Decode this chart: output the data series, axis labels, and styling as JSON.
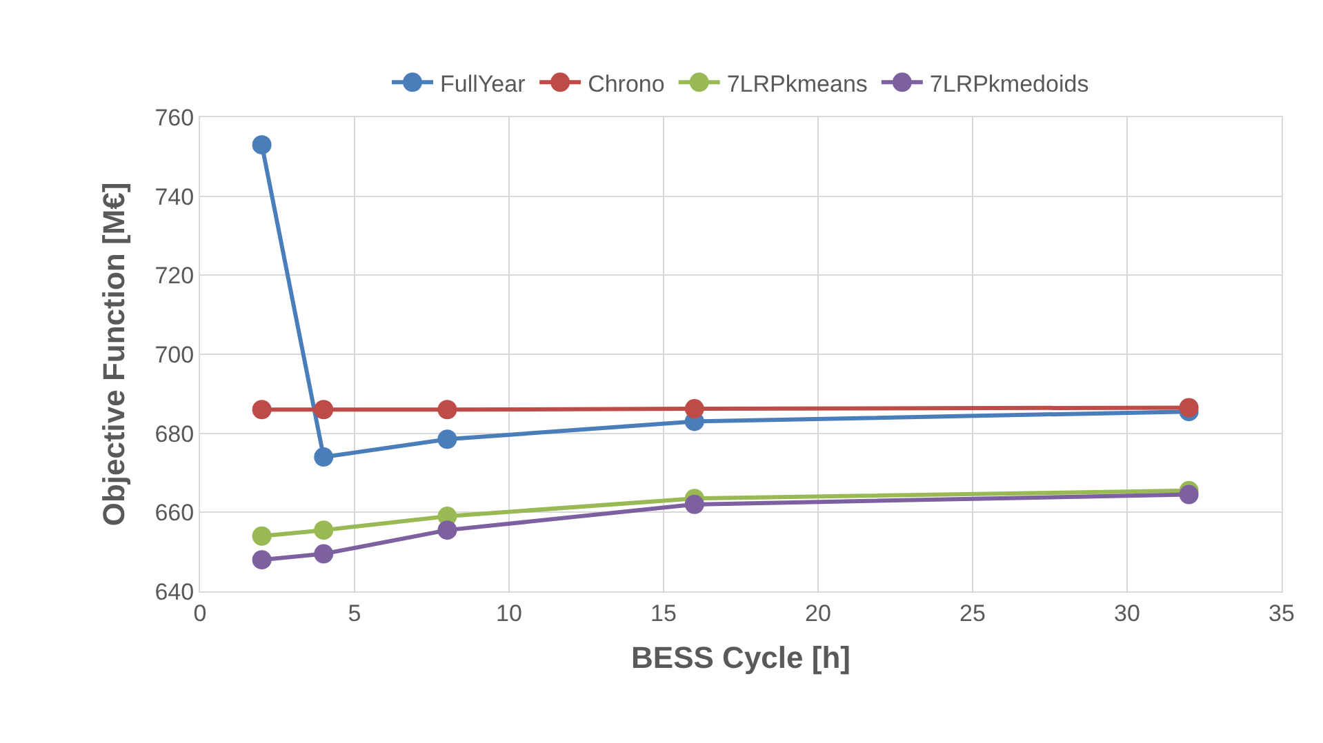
{
  "chart_data": {
    "type": "line",
    "xlabel": "BESS Cycle [h]",
    "ylabel": "Objective Function [M€]",
    "x": [
      2,
      4,
      8,
      16,
      32
    ],
    "series": [
      {
        "name": "FullYear",
        "color": "#4a7ebb",
        "values": [
          753,
          674,
          678.5,
          683,
          685.5
        ]
      },
      {
        "name": "Chrono",
        "color": "#be4b48",
        "values": [
          686,
          686,
          686,
          686.2,
          686.5
        ]
      },
      {
        "name": "7LRPkmeans",
        "color": "#98b954",
        "values": [
          654,
          655.5,
          659,
          663.5,
          665.5
        ]
      },
      {
        "name": "7LRPkmedoids",
        "color": "#7d60a0",
        "values": [
          648,
          649.5,
          655.5,
          662,
          664.5
        ]
      }
    ],
    "xlim": [
      0,
      35
    ],
    "xticks": [
      0,
      5,
      10,
      15,
      20,
      25,
      30,
      35
    ],
    "ylim": [
      640,
      760
    ],
    "yticks": [
      640,
      660,
      680,
      700,
      720,
      740,
      760
    ],
    "grid": true,
    "legend": "top",
    "marker": "circle",
    "line_style": "solid"
  }
}
